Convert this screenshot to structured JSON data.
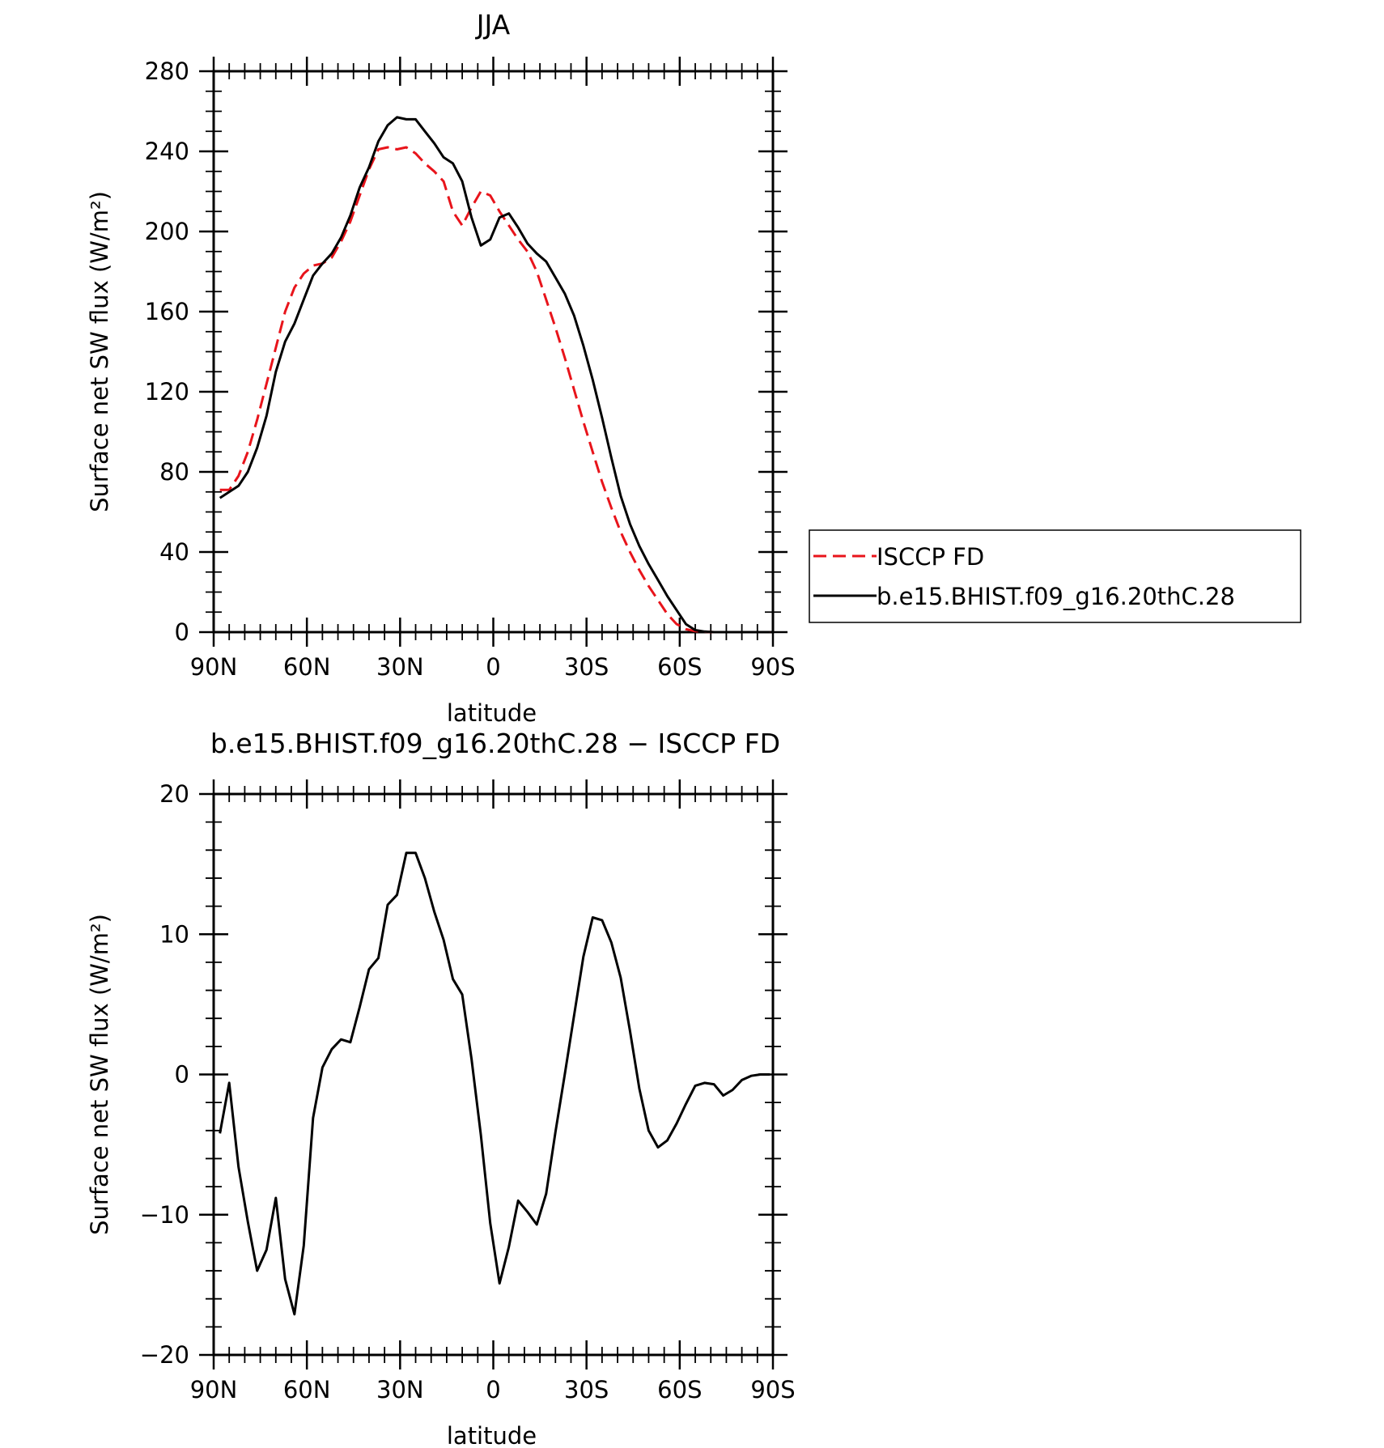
{
  "chart_data": [
    {
      "type": "line",
      "title": "JJA",
      "xlabel": "latitude",
      "ylabel": "Surface net SW flux (W/m²)",
      "ylim": [
        0,
        280
      ],
      "xlim": [
        90,
        -90
      ],
      "x_tick_values": [
        90,
        60,
        30,
        0,
        -30,
        -60,
        -90
      ],
      "x_tick_labels": [
        "90N",
        "60N",
        "30N",
        "0",
        "30S",
        "60S",
        "90S"
      ],
      "y_tick_values": [
        0,
        40,
        80,
        120,
        160,
        200,
        240,
        280
      ],
      "y_tick_labels": [
        "0",
        "40",
        "80",
        "120",
        "160",
        "200",
        "240",
        "280"
      ],
      "legend": {
        "placement": "right",
        "entries": [
          {
            "label": "ISCCP FD",
            "color": "#e8141b",
            "style": "dashed"
          },
          {
            "label": "b.e15.BHIST.f09_g16.20thC.28",
            "color": "#000000",
            "style": "solid"
          }
        ]
      },
      "series": [
        {
          "name": "ISCCP FD",
          "color": "#e8141b",
          "style": "dashed",
          "x": [
            88,
            85,
            82,
            79,
            76,
            73,
            70,
            67,
            64,
            61,
            58,
            55,
            52,
            49,
            46,
            43,
            40,
            37,
            34,
            31,
            28,
            25,
            22,
            19,
            16,
            13,
            10,
            7,
            4,
            1,
            -2,
            -5,
            -8,
            -11,
            -14,
            -17,
            -20,
            -23,
            -26,
            -29,
            -32,
            -35,
            -38,
            -41,
            -44,
            -47,
            -50,
            -53,
            -56,
            -59,
            -62,
            -65,
            -68,
            -71,
            -74,
            -77,
            -80,
            -83,
            -86,
            -89
          ],
          "y": [
            71,
            71,
            78,
            90,
            106,
            124,
            142,
            160,
            172,
            179,
            183,
            184,
            187,
            195,
            205,
            218,
            231,
            241,
            242,
            241,
            242,
            239,
            234,
            230,
            225,
            210,
            203,
            212,
            220,
            218,
            210,
            203,
            196,
            190,
            180,
            166,
            152,
            137,
            121,
            105,
            90,
            75,
            62,
            50,
            40,
            31,
            23,
            16,
            9,
            4,
            1.5,
            0.5,
            0.2,
            0,
            0,
            0,
            0,
            0,
            0,
            0
          ]
        },
        {
          "name": "b.e15.BHIST.f09_g16.20thC.28",
          "color": "#000000",
          "style": "solid",
          "x": [
            88,
            85,
            82,
            79,
            76,
            73,
            70,
            67,
            64,
            61,
            58,
            55,
            52,
            49,
            46,
            43,
            40,
            37,
            34,
            31,
            28,
            25,
            22,
            19,
            16,
            13,
            10,
            7,
            4,
            1,
            -2,
            -5,
            -8,
            -11,
            -14,
            -17,
            -20,
            -23,
            -26,
            -29,
            -32,
            -35,
            -38,
            -41,
            -44,
            -47,
            -50,
            -53,
            -56,
            -59,
            -62,
            -65,
            -68,
            -71,
            -74,
            -77,
            -80,
            -83,
            -86,
            -89
          ],
          "y": [
            67,
            70,
            73,
            80,
            92,
            108,
            130,
            145,
            154,
            166,
            178,
            184,
            189,
            197,
            208,
            222,
            232,
            245,
            253,
            257,
            256,
            256,
            250,
            244,
            237,
            234,
            225,
            207,
            193,
            196,
            207,
            209,
            202,
            194,
            189,
            185,
            177,
            169,
            158,
            143,
            126,
            107,
            87,
            68,
            54,
            43,
            34,
            26,
            18,
            11,
            4,
            1,
            0.3,
            0,
            0,
            0,
            0,
            0,
            0,
            0
          ]
        }
      ]
    },
    {
      "type": "line",
      "title": "b.e15.BHIST.f09_g16.20thC.28 − ISCCP FD",
      "xlabel": "latitude",
      "ylabel": "Surface net SW flux (W/m²)",
      "ylim": [
        -20,
        20
      ],
      "xlim": [
        90,
        -90
      ],
      "x_tick_values": [
        90,
        60,
        30,
        0,
        -30,
        -60,
        -90
      ],
      "x_tick_labels": [
        "90N",
        "60N",
        "30N",
        "0",
        "30S",
        "60S",
        "90S"
      ],
      "y_tick_values": [
        -20,
        -10,
        0,
        10,
        20
      ],
      "y_tick_labels": [
        "−20",
        "−10",
        "0",
        "10",
        "20"
      ],
      "series": [
        {
          "color": "#000000",
          "style": "solid",
          "x": [
            88,
            85,
            82,
            79,
            76,
            73,
            70,
            67,
            64,
            61,
            58,
            55,
            52,
            49,
            46,
            43,
            40,
            37,
            34,
            31,
            28,
            25,
            22,
            19,
            16,
            13,
            10,
            7,
            4,
            1,
            -2,
            -5,
            -8,
            -11,
            -14,
            -17,
            -20,
            -23,
            -26,
            -29,
            -32,
            -35,
            -38,
            -41,
            -44,
            -47,
            -50,
            -53,
            -56,
            -59,
            -62,
            -65,
            -68,
            -71,
            -74,
            -77,
            -80,
            -83,
            -86,
            -89
          ],
          "y": [
            -4.2,
            -0.6,
            -6.6,
            -10.5,
            -14.0,
            -12.5,
            -8.8,
            -14.6,
            -17.1,
            -12.2,
            -3.1,
            0.5,
            1.8,
            2.5,
            2.3,
            4.8,
            7.5,
            8.3,
            12.1,
            12.8,
            15.8,
            15.8,
            14.0,
            11.6,
            9.6,
            6.8,
            5.7,
            1.1,
            -4.3,
            -10.6,
            -14.9,
            -12.3,
            -9.0,
            -9.8,
            -10.7,
            -8.5,
            -4.1,
            0.0,
            4.2,
            8.4,
            11.2,
            11.0,
            9.4,
            6.9,
            3.1,
            -1.0,
            -4.0,
            -5.2,
            -4.7,
            -3.5,
            -2.1,
            -0.8,
            -0.6,
            -0.7,
            -1.5,
            -1.1,
            -0.4,
            -0.1,
            0,
            0
          ]
        }
      ]
    }
  ]
}
